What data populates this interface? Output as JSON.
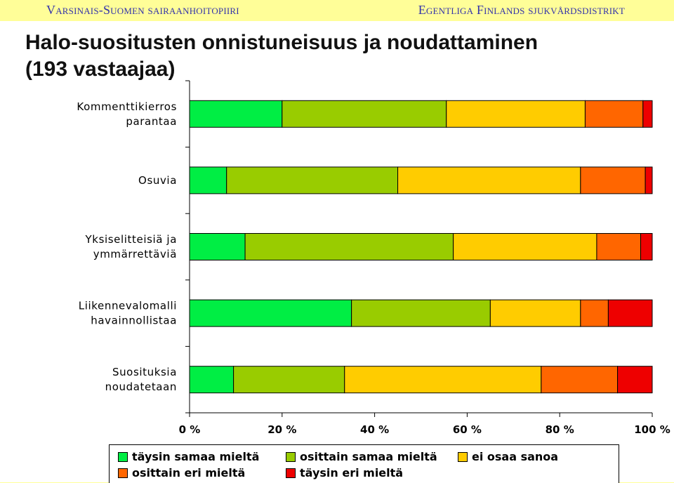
{
  "header": {
    "left": "Varsinais-Suomen sairaanhoitopiiri",
    "right": "Egentliga Finlands sjukvårdsdistrikt"
  },
  "title": "Halo-suositusten onnistuneisuus ja noudattaminen\n(193 vastaajaa)",
  "colors": {
    "series": [
      "#00ee44",
      "#99cc00",
      "#ffcc00",
      "#ff6600",
      "#ee0000"
    ],
    "header_bg": "#ffff99",
    "header_text": "#3333aa"
  },
  "chart_data": {
    "type": "bar",
    "orientation": "horizontal",
    "stacked": true,
    "percent": true,
    "categories": [
      "Kommenttikierros\nparantaa",
      "Osuvia",
      "Yksiselitteisiä ja\nymmärrettäviä",
      "Liikennevalomalli\nhavainnollistaa",
      "Suosituksia\nnoudatetaan"
    ],
    "series": [
      {
        "name": "täysin samaa mieltä",
        "values": [
          20,
          8,
          12,
          35,
          9.5
        ]
      },
      {
        "name": "osittain samaa mieltä",
        "values": [
          35.5,
          37,
          45,
          30,
          24
        ]
      },
      {
        "name": "ei osaa sanoa",
        "values": [
          30,
          39.5,
          31,
          19.5,
          42.5
        ]
      },
      {
        "name": "osittain eri mieltä",
        "values": [
          12.5,
          14,
          9.5,
          6,
          16.5
        ]
      },
      {
        "name": "täysin eri mieltä",
        "values": [
          2,
          1.5,
          2.5,
          9.5,
          7.5
        ]
      }
    ],
    "xticks": [
      "0 %",
      "20 %",
      "40 %",
      "60 %",
      "80 %",
      "100 %"
    ],
    "xlim": [
      0,
      100
    ],
    "legend": "bottom",
    "grid": false
  }
}
